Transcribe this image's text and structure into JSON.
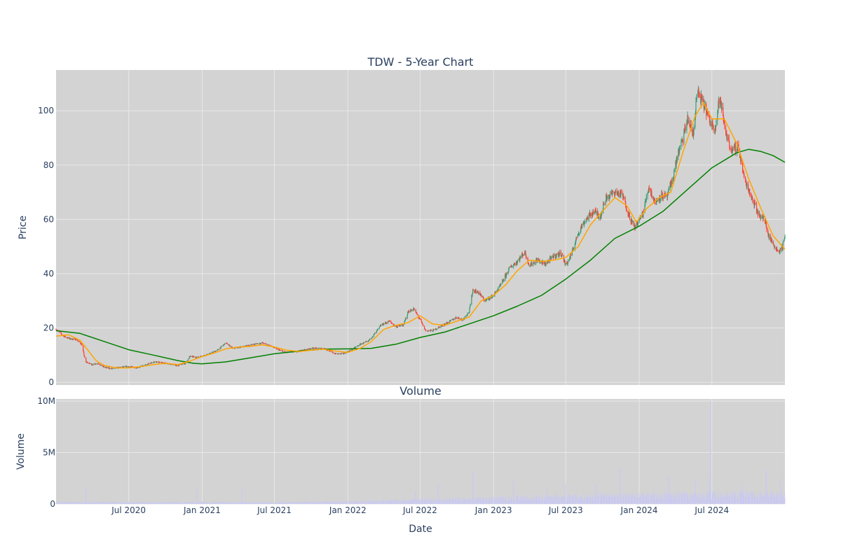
{
  "chart_data": [
    {
      "type": "candlestick",
      "title": "TDW - 5-Year Chart",
      "ylabel": "Price",
      "ylim": [
        -1,
        115
      ],
      "yticks": [
        0,
        20,
        40,
        60,
        80,
        100
      ],
      "xlim": [
        "2020-01-01",
        "2024-12-31"
      ],
      "xticks": [
        "2020-07-01",
        "2021-01-01",
        "2021-07-01",
        "2022-01-01",
        "2022-07-01",
        "2023-01-01",
        "2023-07-01",
        "2024-01-01",
        "2024-07-01"
      ],
      "grid": true,
      "colors": {
        "up": "#3d9970",
        "down": "#ff4136",
        "ma_short": "#ffa500",
        "ma_long": "#008000",
        "plot_bg": "#d3d3d3",
        "grid": "#e8e8e8"
      },
      "price_path": [
        [
          "2020-01-01",
          19.5
        ],
        [
          "2020-01-20",
          17
        ],
        [
          "2020-02-05",
          16
        ],
        [
          "2020-02-20",
          15.8
        ],
        [
          "2020-03-05",
          14
        ],
        [
          "2020-03-15",
          7.5
        ],
        [
          "2020-04-01",
          6.5
        ],
        [
          "2020-04-15",
          7
        ],
        [
          "2020-05-01",
          5.5
        ],
        [
          "2020-05-20",
          5
        ],
        [
          "2020-06-10",
          5.5
        ],
        [
          "2020-07-01",
          5.8
        ],
        [
          "2020-07-20",
          5.4
        ],
        [
          "2020-08-10",
          6.2
        ],
        [
          "2020-09-01",
          7.5
        ],
        [
          "2020-10-01",
          7
        ],
        [
          "2020-11-01",
          6.2
        ],
        [
          "2020-11-20",
          7
        ],
        [
          "2020-12-01",
          9.5
        ],
        [
          "2020-12-20",
          9.2
        ],
        [
          "2021-01-20",
          10.5
        ],
        [
          "2021-02-10",
          12
        ],
        [
          "2021-03-01",
          14.5
        ],
        [
          "2021-03-20",
          12.5
        ],
        [
          "2021-04-10",
          13
        ],
        [
          "2021-05-10",
          14
        ],
        [
          "2021-06-01",
          14.5
        ],
        [
          "2021-06-20",
          13.5
        ],
        [
          "2021-07-10",
          12
        ],
        [
          "2021-08-01",
          11
        ],
        [
          "2021-09-01",
          11.5
        ],
        [
          "2021-10-01",
          12.5
        ],
        [
          "2021-11-01",
          12.5
        ],
        [
          "2021-12-01",
          10.5
        ],
        [
          "2021-12-20",
          10.5
        ],
        [
          "2022-01-10",
          12
        ],
        [
          "2022-02-01",
          14
        ],
        [
          "2022-02-20",
          15
        ],
        [
          "2022-03-10",
          18
        ],
        [
          "2022-03-25",
          21
        ],
        [
          "2022-04-15",
          22.5
        ],
        [
          "2022-05-01",
          20.5
        ],
        [
          "2022-05-20",
          21
        ],
        [
          "2022-06-01",
          26
        ],
        [
          "2022-06-15",
          27
        ],
        [
          "2022-07-01",
          23
        ],
        [
          "2022-07-15",
          19
        ],
        [
          "2022-08-01",
          19
        ],
        [
          "2022-08-20",
          20.5
        ],
        [
          "2022-09-15",
          22.5
        ],
        [
          "2022-10-01",
          24
        ],
        [
          "2022-10-15",
          23
        ],
        [
          "2022-11-01",
          26
        ],
        [
          "2022-11-10",
          34
        ],
        [
          "2022-11-25",
          33
        ],
        [
          "2022-12-10",
          30
        ],
        [
          "2023-01-01",
          32
        ],
        [
          "2023-01-20",
          36
        ],
        [
          "2023-02-10",
          42
        ],
        [
          "2023-03-01",
          44.5
        ],
        [
          "2023-03-20",
          48
        ],
        [
          "2023-04-01",
          43
        ],
        [
          "2023-04-20",
          45
        ],
        [
          "2023-05-10",
          43.5
        ],
        [
          "2023-06-01",
          46.5
        ],
        [
          "2023-06-20",
          47.5
        ],
        [
          "2023-07-01",
          43
        ],
        [
          "2023-07-15",
          47
        ],
        [
          "2023-08-01",
          55
        ],
        [
          "2023-08-20",
          60
        ],
        [
          "2023-09-10",
          63
        ],
        [
          "2023-09-25",
          61
        ],
        [
          "2023-10-10",
          68
        ],
        [
          "2023-11-01",
          70
        ],
        [
          "2023-11-20",
          69
        ],
        [
          "2023-12-05",
          62
        ],
        [
          "2023-12-20",
          57
        ],
        [
          "2024-01-10",
          62
        ],
        [
          "2024-01-25",
          72
        ],
        [
          "2024-02-10",
          66
        ],
        [
          "2024-02-25",
          69
        ],
        [
          "2024-03-10",
          68
        ],
        [
          "2024-03-25",
          75
        ],
        [
          "2024-04-05",
          83
        ],
        [
          "2024-04-20",
          90
        ],
        [
          "2024-05-01",
          97
        ],
        [
          "2024-05-15",
          91
        ],
        [
          "2024-05-25",
          107
        ],
        [
          "2024-06-05",
          104
        ],
        [
          "2024-06-15",
          101
        ],
        [
          "2024-06-25",
          96
        ],
        [
          "2024-07-10",
          94
        ],
        [
          "2024-07-20",
          105
        ],
        [
          "2024-08-05",
          92
        ],
        [
          "2024-08-20",
          85
        ],
        [
          "2024-09-05",
          87
        ],
        [
          "2024-09-20",
          75
        ],
        [
          "2024-10-01",
          71
        ],
        [
          "2024-10-15",
          66
        ],
        [
          "2024-10-25",
          62
        ],
        [
          "2024-11-10",
          60
        ],
        [
          "2024-11-20",
          54
        ],
        [
          "2024-12-01",
          51
        ],
        [
          "2024-12-15",
          48
        ],
        [
          "2024-12-25",
          50
        ],
        [
          "2024-12-31",
          54
        ]
      ],
      "ma_short_path": [
        [
          "2020-01-01",
          17
        ],
        [
          "2020-02-01",
          17.5
        ],
        [
          "2020-03-01",
          15.5
        ],
        [
          "2020-03-20",
          12
        ],
        [
          "2020-04-10",
          8
        ],
        [
          "2020-05-01",
          6.2
        ],
        [
          "2020-06-01",
          5.3
        ],
        [
          "2020-07-01",
          5.3
        ],
        [
          "2020-08-01",
          5.8
        ],
        [
          "2020-09-01",
          6.5
        ],
        [
          "2020-10-01",
          7
        ],
        [
          "2020-11-01",
          6.5
        ],
        [
          "2020-12-01",
          7.8
        ],
        [
          "2021-01-01",
          9.5
        ],
        [
          "2021-02-01",
          10.8
        ],
        [
          "2021-03-01",
          12.3
        ],
        [
          "2021-04-01",
          13
        ],
        [
          "2021-05-01",
          13.2
        ],
        [
          "2021-06-01",
          13.8
        ],
        [
          "2021-07-01",
          13
        ],
        [
          "2021-08-01",
          11.8
        ],
        [
          "2021-09-01",
          11.3
        ],
        [
          "2021-10-01",
          11.8
        ],
        [
          "2021-11-01",
          12.2
        ],
        [
          "2021-12-01",
          11.5
        ],
        [
          "2022-01-01",
          11
        ],
        [
          "2022-02-01",
          12.5
        ],
        [
          "2022-03-01",
          15
        ],
        [
          "2022-04-01",
          19.5
        ],
        [
          "2022-05-01",
          21
        ],
        [
          "2022-06-01",
          22
        ],
        [
          "2022-07-01",
          24.5
        ],
        [
          "2022-08-01",
          21.5
        ],
        [
          "2022-09-01",
          21
        ],
        [
          "2022-10-01",
          22.5
        ],
        [
          "2022-11-01",
          24
        ],
        [
          "2022-12-01",
          30
        ],
        [
          "2023-01-01",
          32
        ],
        [
          "2023-02-01",
          36
        ],
        [
          "2023-03-01",
          41
        ],
        [
          "2023-04-01",
          45
        ],
        [
          "2023-05-01",
          44.5
        ],
        [
          "2023-06-01",
          45
        ],
        [
          "2023-07-01",
          46
        ],
        [
          "2023-08-01",
          50
        ],
        [
          "2023-09-01",
          58
        ],
        [
          "2023-10-01",
          63
        ],
        [
          "2023-11-01",
          68
        ],
        [
          "2023-12-01",
          65
        ],
        [
          "2023-12-25",
          59
        ],
        [
          "2024-01-20",
          64
        ],
        [
          "2024-02-20",
          68
        ],
        [
          "2024-03-20",
          70
        ],
        [
          "2024-04-20",
          85
        ],
        [
          "2024-05-20",
          98
        ],
        [
          "2024-06-10",
          103
        ],
        [
          "2024-07-01",
          97
        ],
        [
          "2024-08-01",
          97
        ],
        [
          "2024-09-01",
          88
        ],
        [
          "2024-10-01",
          75
        ],
        [
          "2024-11-01",
          64
        ],
        [
          "2024-12-01",
          54
        ],
        [
          "2024-12-31",
          49
        ]
      ],
      "ma_long_path": [
        [
          "2020-01-01",
          19
        ],
        [
          "2020-03-01",
          18
        ],
        [
          "2020-05-01",
          15
        ],
        [
          "2020-07-01",
          12
        ],
        [
          "2020-09-01",
          10
        ],
        [
          "2020-11-01",
          8
        ],
        [
          "2020-12-10",
          7
        ],
        [
          "2021-01-01",
          6.8
        ],
        [
          "2021-03-01",
          7.5
        ],
        [
          "2021-05-01",
          9
        ],
        [
          "2021-07-01",
          10.5
        ],
        [
          "2021-09-01",
          11.5
        ],
        [
          "2021-11-01",
          12.2
        ],
        [
          "2022-01-01",
          12.3
        ],
        [
          "2022-03-01",
          12.5
        ],
        [
          "2022-05-01",
          14
        ],
        [
          "2022-07-01",
          16.5
        ],
        [
          "2022-09-01",
          18.5
        ],
        [
          "2022-11-01",
          21.5
        ],
        [
          "2023-01-01",
          24.5
        ],
        [
          "2023-03-01",
          28
        ],
        [
          "2023-05-01",
          32
        ],
        [
          "2023-07-01",
          38
        ],
        [
          "2023-09-01",
          45
        ],
        [
          "2023-11-01",
          53
        ],
        [
          "2024-01-01",
          57.5
        ],
        [
          "2024-03-01",
          63
        ],
        [
          "2024-05-01",
          71
        ],
        [
          "2024-07-01",
          79
        ],
        [
          "2024-09-01",
          84.5
        ],
        [
          "2024-10-01",
          85.8
        ],
        [
          "2024-11-01",
          85
        ],
        [
          "2024-12-01",
          83.5
        ],
        [
          "2024-12-31",
          81
        ]
      ]
    },
    {
      "type": "bar",
      "title": "Volume",
      "ylabel": "Volume",
      "xlabel": "Date",
      "ylim": [
        0,
        10200000
      ],
      "yticks": [
        0,
        5000000,
        10000000
      ],
      "ytick_labels": [
        "0",
        "5M",
        "10M"
      ],
      "xtick_labels": [
        "Jul 2020",
        "Jan 2021",
        "Jul 2021",
        "Jan 2022",
        "Jul 2022",
        "Jan 2023",
        "Jul 2023",
        "Jan 2024",
        "Jul 2024"
      ],
      "color": "#c9c9f2",
      "volume_level": [
        [
          "2020-01-01",
          200000
        ],
        [
          "2021-06-01",
          180000
        ],
        [
          "2022-01-01",
          250000
        ],
        [
          "2022-06-01",
          400000
        ],
        [
          "2023-01-01",
          600000
        ],
        [
          "2023-06-01",
          750000
        ],
        [
          "2024-01-01",
          900000
        ],
        [
          "2024-06-01",
          1000000
        ],
        [
          "2024-12-31",
          1000000
        ]
      ],
      "volume_spikes": [
        [
          "2020-03-16",
          1700000
        ],
        [
          "2020-12-18",
          1400000
        ],
        [
          "2021-04-10",
          1600000
        ],
        [
          "2022-06-20",
          1200000
        ],
        [
          "2022-08-15",
          2000000
        ],
        [
          "2022-11-10",
          3200000
        ],
        [
          "2023-02-20",
          2200000
        ],
        [
          "2023-05-15",
          1500000
        ],
        [
          "2023-06-30",
          2000000
        ],
        [
          "2023-09-15",
          2100000
        ],
        [
          "2023-11-15",
          3500000
        ],
        [
          "2024-03-15",
          2700000
        ],
        [
          "2024-05-20",
          2300000
        ],
        [
          "2024-06-25",
          2500000
        ],
        [
          "2024-06-28",
          10000000
        ],
        [
          "2024-09-15",
          1800000
        ],
        [
          "2024-11-15",
          3300000
        ],
        [
          "2024-12-20",
          2400000
        ]
      ]
    }
  ],
  "axes": {
    "price_title": "Price",
    "volume_title": "Volume",
    "date_title": "Date"
  }
}
